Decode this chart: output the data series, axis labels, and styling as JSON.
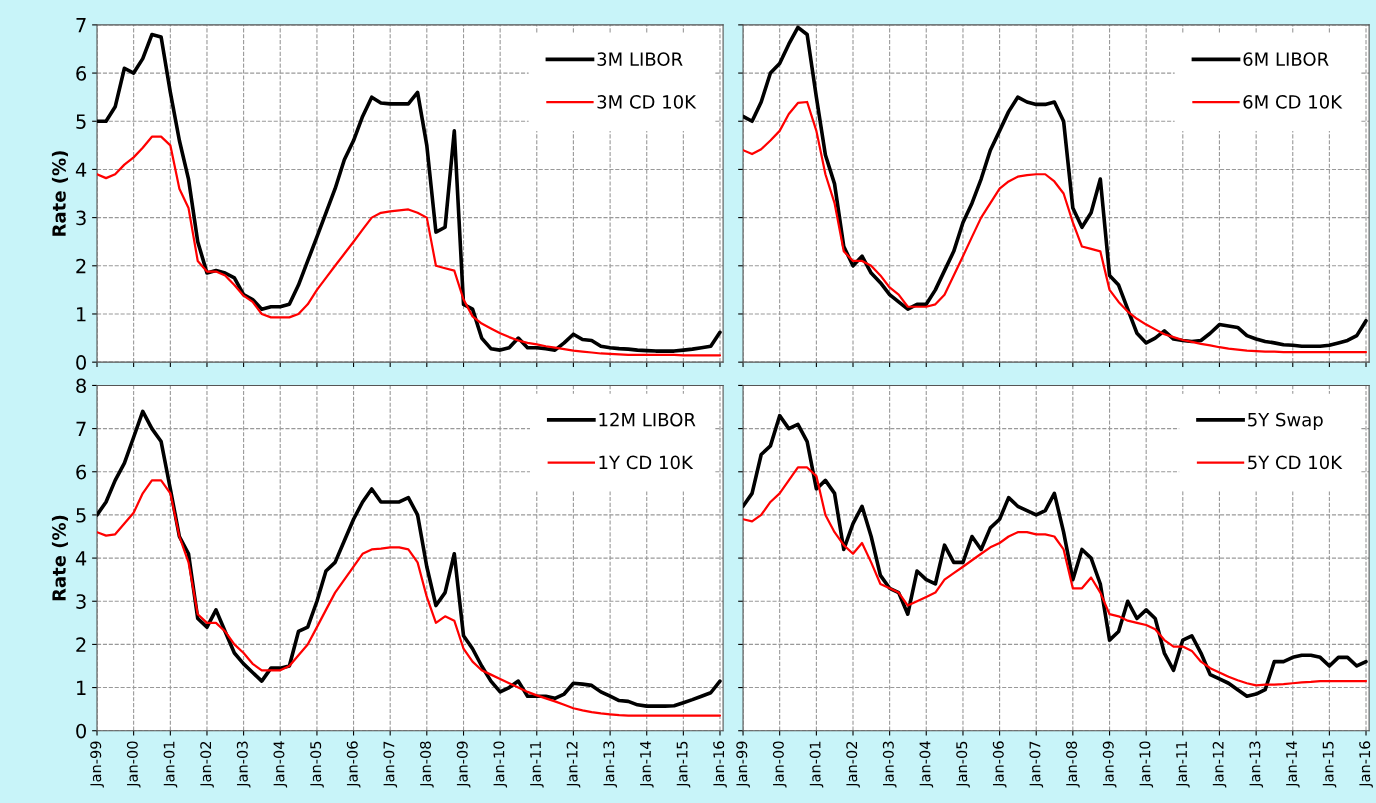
{
  "chart_data": [
    {
      "type": "line",
      "ylabel": "Rate (%)",
      "tick_labels": "y",
      "legend": "top right",
      "grid": true,
      "x": [
        "1999-01",
        "1999-04",
        "1999-07",
        "1999-10",
        "2000-01",
        "2000-04",
        "2000-07",
        "2000-10",
        "2001-01",
        "2001-04",
        "2001-07",
        "2001-10",
        "2002-01",
        "2002-04",
        "2002-07",
        "2002-10",
        "2003-01",
        "2003-04",
        "2003-07",
        "2003-10",
        "2004-01",
        "2004-04",
        "2004-07",
        "2004-10",
        "2005-01",
        "2005-04",
        "2005-07",
        "2005-10",
        "2006-01",
        "2006-04",
        "2006-07",
        "2006-10",
        "2007-01",
        "2007-04",
        "2007-07",
        "2007-10",
        "2008-01",
        "2008-04",
        "2008-07",
        "2008-10",
        "2009-01",
        "2009-04",
        "2009-07",
        "2009-10",
        "2010-01",
        "2010-04",
        "2010-07",
        "2010-10",
        "2011-01",
        "2011-04",
        "2011-07",
        "2011-10",
        "2012-01",
        "2012-04",
        "2012-07",
        "2012-10",
        "2013-01",
        "2013-04",
        "2013-07",
        "2013-10",
        "2014-01",
        "2014-04",
        "2014-07",
        "2014-10",
        "2015-01",
        "2015-04",
        "2015-07",
        "2015-10",
        "2016-01"
      ],
      "xlim": [
        "1999-01",
        "2016-02"
      ],
      "xticks": [
        {
          "value": "1999-01",
          "label": null
        },
        {
          "value": "2000-01",
          "label": null
        },
        {
          "value": "2001-01",
          "label": null
        },
        {
          "value": "2002-01",
          "label": null
        },
        {
          "value": "2003-01",
          "label": null
        },
        {
          "value": "2004-01",
          "label": null
        },
        {
          "value": "2005-01",
          "label": null
        },
        {
          "value": "2006-01",
          "label": null
        },
        {
          "value": "2007-01",
          "label": null
        },
        {
          "value": "2008-01",
          "label": null
        },
        {
          "value": "2009-01",
          "label": null
        },
        {
          "value": "2010-01",
          "label": null
        },
        {
          "value": "2011-01",
          "label": null
        },
        {
          "value": "2012-01",
          "label": null
        },
        {
          "value": "2013-01",
          "label": null
        },
        {
          "value": "2014-01",
          "label": null
        },
        {
          "value": "2015-01",
          "label": null
        },
        {
          "value": "2016-01",
          "label": null
        }
      ],
      "ylim": [
        0,
        7
      ],
      "yticks": [
        0,
        1,
        2,
        3,
        4,
        5,
        6,
        7
      ],
      "series": [
        {
          "name": "3M LIBOR",
          "color": "#000000",
          "values": [
            5.0,
            5.0,
            5.3,
            6.1,
            6.0,
            6.3,
            6.8,
            6.75,
            5.6,
            4.6,
            3.8,
            2.5,
            1.85,
            1.9,
            1.85,
            1.75,
            1.4,
            1.3,
            1.1,
            1.15,
            1.15,
            1.2,
            1.6,
            2.1,
            2.6,
            3.1,
            3.6,
            4.2,
            4.6,
            5.1,
            5.5,
            5.38,
            5.36,
            5.36,
            5.36,
            5.6,
            4.5,
            2.7,
            2.8,
            4.8,
            1.2,
            1.1,
            0.5,
            0.28,
            0.25,
            0.3,
            0.5,
            0.3,
            0.3,
            0.28,
            0.25,
            0.4,
            0.58,
            0.47,
            0.45,
            0.33,
            0.3,
            0.28,
            0.27,
            0.25,
            0.24,
            0.23,
            0.23,
            0.23,
            0.25,
            0.27,
            0.3,
            0.33,
            0.62
          ]
        },
        {
          "name": "3M CD 10K",
          "color": "#ff0000",
          "values": [
            3.9,
            3.82,
            3.9,
            4.1,
            4.25,
            4.45,
            4.68,
            4.68,
            4.5,
            3.6,
            3.2,
            2.1,
            1.88,
            1.88,
            1.8,
            1.6,
            1.38,
            1.25,
            1.0,
            0.93,
            0.93,
            0.93,
            1.0,
            1.2,
            1.5,
            1.75,
            2.0,
            2.25,
            2.5,
            2.75,
            3.0,
            3.1,
            3.13,
            3.15,
            3.17,
            3.1,
            3.0,
            2.0,
            1.95,
            1.9,
            1.3,
            0.95,
            0.8,
            0.7,
            0.6,
            0.52,
            0.45,
            0.4,
            0.37,
            0.33,
            0.3,
            0.27,
            0.24,
            0.22,
            0.2,
            0.18,
            0.17,
            0.16,
            0.15,
            0.15,
            0.15,
            0.15,
            0.15,
            0.15,
            0.14,
            0.14,
            0.14,
            0.14,
            0.14
          ]
        }
      ]
    },
    {
      "type": "line",
      "tick_labels": false,
      "legend": "top right",
      "grid": true,
      "x": [
        "1999-01",
        "1999-04",
        "1999-07",
        "1999-10",
        "2000-01",
        "2000-04",
        "2000-07",
        "2000-10",
        "2001-01",
        "2001-04",
        "2001-07",
        "2001-10",
        "2002-01",
        "2002-04",
        "2002-07",
        "2002-10",
        "2003-01",
        "2003-04",
        "2003-07",
        "2003-10",
        "2004-01",
        "2004-04",
        "2004-07",
        "2004-10",
        "2005-01",
        "2005-04",
        "2005-07",
        "2005-10",
        "2006-01",
        "2006-04",
        "2006-07",
        "2006-10",
        "2007-01",
        "2007-04",
        "2007-07",
        "2007-10",
        "2008-01",
        "2008-04",
        "2008-07",
        "2008-10",
        "2009-01",
        "2009-04",
        "2009-07",
        "2009-10",
        "2010-01",
        "2010-04",
        "2010-07",
        "2010-10",
        "2011-01",
        "2011-04",
        "2011-07",
        "2011-10",
        "2012-01",
        "2012-04",
        "2012-07",
        "2012-10",
        "2013-01",
        "2013-04",
        "2013-07",
        "2013-10",
        "2014-01",
        "2014-04",
        "2014-07",
        "2014-10",
        "2015-01",
        "2015-04",
        "2015-07",
        "2015-10",
        "2016-01"
      ],
      "xlim": [
        "1999-01",
        "2016-02"
      ],
      "xticks": [
        {
          "value": "1999-01",
          "label": null
        },
        {
          "value": "2000-01",
          "label": null
        },
        {
          "value": "2001-01",
          "label": null
        },
        {
          "value": "2002-01",
          "label": null
        },
        {
          "value": "2003-01",
          "label": null
        },
        {
          "value": "2004-01",
          "label": null
        },
        {
          "value": "2005-01",
          "label": null
        },
        {
          "value": "2006-01",
          "label": null
        },
        {
          "value": "2007-01",
          "label": null
        },
        {
          "value": "2008-01",
          "label": null
        },
        {
          "value": "2009-01",
          "label": null
        },
        {
          "value": "2010-01",
          "label": null
        },
        {
          "value": "2011-01",
          "label": null
        },
        {
          "value": "2012-01",
          "label": null
        },
        {
          "value": "2013-01",
          "label": null
        },
        {
          "value": "2014-01",
          "label": null
        },
        {
          "value": "2015-01",
          "label": null
        },
        {
          "value": "2016-01",
          "label": null
        }
      ],
      "ylim": [
        0,
        7
      ],
      "yticks": [
        0,
        1,
        2,
        3,
        4,
        5,
        6,
        7
      ],
      "series": [
        {
          "name": "6M LIBOR",
          "color": "#000000",
          "values": [
            5.1,
            5.0,
            5.4,
            6.0,
            6.2,
            6.6,
            6.95,
            6.8,
            5.5,
            4.3,
            3.7,
            2.4,
            2.0,
            2.2,
            1.85,
            1.65,
            1.4,
            1.25,
            1.1,
            1.2,
            1.2,
            1.5,
            1.9,
            2.3,
            2.9,
            3.3,
            3.8,
            4.4,
            4.8,
            5.2,
            5.5,
            5.4,
            5.35,
            5.35,
            5.4,
            5.0,
            3.2,
            2.8,
            3.1,
            3.8,
            1.8,
            1.6,
            1.1,
            0.6,
            0.4,
            0.5,
            0.65,
            0.48,
            0.45,
            0.43,
            0.45,
            0.6,
            0.78,
            0.75,
            0.72,
            0.55,
            0.48,
            0.43,
            0.4,
            0.36,
            0.35,
            0.33,
            0.33,
            0.33,
            0.35,
            0.4,
            0.45,
            0.55,
            0.86
          ]
        },
        {
          "name": "6M CD 10K",
          "color": "#ff0000",
          "values": [
            4.4,
            4.32,
            4.42,
            4.6,
            4.8,
            5.15,
            5.38,
            5.4,
            4.8,
            3.9,
            3.3,
            2.3,
            2.1,
            2.1,
            2.0,
            1.8,
            1.55,
            1.4,
            1.15,
            1.15,
            1.15,
            1.2,
            1.4,
            1.8,
            2.2,
            2.6,
            3.0,
            3.3,
            3.6,
            3.75,
            3.85,
            3.88,
            3.9,
            3.9,
            3.75,
            3.5,
            2.9,
            2.4,
            2.35,
            2.3,
            1.5,
            1.25,
            1.05,
            0.9,
            0.78,
            0.68,
            0.58,
            0.52,
            0.46,
            0.42,
            0.38,
            0.35,
            0.31,
            0.28,
            0.26,
            0.24,
            0.23,
            0.22,
            0.22,
            0.21,
            0.21,
            0.21,
            0.21,
            0.21,
            0.21,
            0.21,
            0.21,
            0.21,
            0.21
          ]
        }
      ]
    },
    {
      "type": "line",
      "ylabel": "Rate (%)",
      "legend": "top right",
      "grid": true,
      "x": [
        "1999-01",
        "1999-04",
        "1999-07",
        "1999-10",
        "2000-01",
        "2000-04",
        "2000-07",
        "2000-10",
        "2001-01",
        "2001-04",
        "2001-07",
        "2001-10",
        "2002-01",
        "2002-04",
        "2002-07",
        "2002-10",
        "2003-01",
        "2003-04",
        "2003-07",
        "2003-10",
        "2004-01",
        "2004-04",
        "2004-07",
        "2004-10",
        "2005-01",
        "2005-04",
        "2005-07",
        "2005-10",
        "2006-01",
        "2006-04",
        "2006-07",
        "2006-10",
        "2007-01",
        "2007-04",
        "2007-07",
        "2007-10",
        "2008-01",
        "2008-04",
        "2008-07",
        "2008-10",
        "2009-01",
        "2009-04",
        "2009-07",
        "2009-10",
        "2010-01",
        "2010-04",
        "2010-07",
        "2010-10",
        "2011-01",
        "2011-04",
        "2011-07",
        "2011-10",
        "2012-01",
        "2012-04",
        "2012-07",
        "2012-10",
        "2013-01",
        "2013-04",
        "2013-07",
        "2013-10",
        "2014-01",
        "2014-04",
        "2014-07",
        "2014-10",
        "2015-01",
        "2015-04",
        "2015-07",
        "2015-10",
        "2016-01"
      ],
      "xlim": [
        "1999-01",
        "2016-02"
      ],
      "xticks": [
        {
          "value": "1999-01",
          "label": "Jan-99"
        },
        {
          "value": "2000-01",
          "label": "Jan-00"
        },
        {
          "value": "2001-01",
          "label": "Jan-01"
        },
        {
          "value": "2002-01",
          "label": "Jan-02"
        },
        {
          "value": "2003-01",
          "label": "Jan-03"
        },
        {
          "value": "2004-01",
          "label": "Jan-04"
        },
        {
          "value": "2005-01",
          "label": "Jan-05"
        },
        {
          "value": "2006-01",
          "label": "Jan-06"
        },
        {
          "value": "2007-01",
          "label": "Jan-07"
        },
        {
          "value": "2008-01",
          "label": "Jan-08"
        },
        {
          "value": "2009-01",
          "label": "Jan-09"
        },
        {
          "value": "2010-01",
          "label": "Jan-10"
        },
        {
          "value": "2011-01",
          "label": "Jan-11"
        },
        {
          "value": "2012-01",
          "label": "Jan-12"
        },
        {
          "value": "2013-01",
          "label": "Jan-13"
        },
        {
          "value": "2014-01",
          "label": "Jan-14"
        },
        {
          "value": "2015-01",
          "label": "Jan-15"
        },
        {
          "value": "2016-01",
          "label": "Jan-16"
        }
      ],
      "ylim": [
        0,
        8
      ],
      "yticks": [
        0,
        1,
        2,
        3,
        4,
        5,
        6,
        7,
        8
      ],
      "series": [
        {
          "name": "12M LIBOR",
          "color": "#000000",
          "values": [
            5.0,
            5.3,
            5.8,
            6.2,
            6.8,
            7.4,
            7.0,
            6.7,
            5.6,
            4.5,
            4.1,
            2.6,
            2.4,
            2.8,
            2.3,
            1.8,
            1.55,
            1.35,
            1.15,
            1.45,
            1.45,
            1.5,
            2.3,
            2.4,
            3.0,
            3.7,
            3.9,
            4.4,
            4.9,
            5.3,
            5.6,
            5.3,
            5.3,
            5.3,
            5.4,
            5.0,
            3.8,
            2.9,
            3.2,
            4.1,
            2.2,
            1.9,
            1.5,
            1.15,
            0.9,
            1.0,
            1.15,
            0.8,
            0.8,
            0.8,
            0.75,
            0.85,
            1.1,
            1.08,
            1.05,
            0.9,
            0.8,
            0.7,
            0.68,
            0.6,
            0.57,
            0.57,
            0.57,
            0.58,
            0.65,
            0.72,
            0.8,
            0.88,
            1.15
          ]
        },
        {
          "name": "1Y CD 10K",
          "color": "#ff0000",
          "values": [
            4.6,
            4.52,
            4.55,
            4.8,
            5.05,
            5.5,
            5.8,
            5.8,
            5.5,
            4.5,
            3.9,
            2.7,
            2.5,
            2.5,
            2.3,
            2.0,
            1.8,
            1.55,
            1.4,
            1.4,
            1.4,
            1.5,
            1.75,
            2.0,
            2.4,
            2.8,
            3.2,
            3.5,
            3.8,
            4.1,
            4.2,
            4.22,
            4.25,
            4.25,
            4.2,
            3.9,
            3.1,
            2.5,
            2.65,
            2.55,
            1.9,
            1.6,
            1.4,
            1.3,
            1.2,
            1.1,
            1.0,
            0.9,
            0.82,
            0.75,
            0.68,
            0.6,
            0.52,
            0.47,
            0.43,
            0.4,
            0.38,
            0.36,
            0.35,
            0.35,
            0.35,
            0.35,
            0.35,
            0.35,
            0.35,
            0.35,
            0.35,
            0.35,
            0.35
          ]
        }
      ]
    },
    {
      "type": "line",
      "tick_labels": "x",
      "legend": "top right",
      "grid": true,
      "x": [
        "1999-01",
        "1999-04",
        "1999-07",
        "1999-10",
        "2000-01",
        "2000-04",
        "2000-07",
        "2000-10",
        "2001-01",
        "2001-04",
        "2001-07",
        "2001-10",
        "2002-01",
        "2002-04",
        "2002-07",
        "2002-10",
        "2003-01",
        "2003-04",
        "2003-07",
        "2003-10",
        "2004-01",
        "2004-04",
        "2004-07",
        "2004-10",
        "2005-01",
        "2005-04",
        "2005-07",
        "2005-10",
        "2006-01",
        "2006-04",
        "2006-07",
        "2006-10",
        "2007-01",
        "2007-04",
        "2007-07",
        "2007-10",
        "2008-01",
        "2008-04",
        "2008-07",
        "2008-10",
        "2009-01",
        "2009-04",
        "2009-07",
        "2009-10",
        "2010-01",
        "2010-04",
        "2010-07",
        "2010-10",
        "2011-01",
        "2011-04",
        "2011-07",
        "2011-10",
        "2012-01",
        "2012-04",
        "2012-07",
        "2012-10",
        "2013-01",
        "2013-04",
        "2013-07",
        "2013-10",
        "2014-01",
        "2014-04",
        "2014-07",
        "2014-10",
        "2015-01",
        "2015-04",
        "2015-07",
        "2015-10",
        "2016-01"
      ],
      "xlim": [
        "1999-01",
        "2016-02"
      ],
      "xticks": [
        {
          "value": "1999-01",
          "label": "Jan-99"
        },
        {
          "value": "2000-01",
          "label": "Jan-00"
        },
        {
          "value": "2001-01",
          "label": "Jan-01"
        },
        {
          "value": "2002-01",
          "label": "Jan-02"
        },
        {
          "value": "2003-01",
          "label": "Jan-03"
        },
        {
          "value": "2004-01",
          "label": "Jan-04"
        },
        {
          "value": "2005-01",
          "label": "Jan-05"
        },
        {
          "value": "2006-01",
          "label": "Jan-06"
        },
        {
          "value": "2007-01",
          "label": "Jan-07"
        },
        {
          "value": "2008-01",
          "label": "Jan-08"
        },
        {
          "value": "2009-01",
          "label": "Jan-09"
        },
        {
          "value": "2010-01",
          "label": "Jan-10"
        },
        {
          "value": "2011-01",
          "label": "Jan-11"
        },
        {
          "value": "2012-01",
          "label": "Jan-12"
        },
        {
          "value": "2013-01",
          "label": "Jan-13"
        },
        {
          "value": "2014-01",
          "label": "Jan-14"
        },
        {
          "value": "2015-01",
          "label": "Jan-15"
        },
        {
          "value": "2016-01",
          "label": "Jan-16"
        }
      ],
      "ylim": [
        0,
        8
      ],
      "yticks": [
        0,
        1,
        2,
        3,
        4,
        5,
        6,
        7,
        8
      ],
      "series": [
        {
          "name": "5Y Swap",
          "color": "#000000",
          "values": [
            5.2,
            5.5,
            6.4,
            6.6,
            7.3,
            7.0,
            7.1,
            6.7,
            5.6,
            5.8,
            5.5,
            4.2,
            4.8,
            5.2,
            4.5,
            3.6,
            3.3,
            3.2,
            2.7,
            3.7,
            3.5,
            3.4,
            4.3,
            3.9,
            3.9,
            4.5,
            4.2,
            4.7,
            4.9,
            5.4,
            5.2,
            5.1,
            5.0,
            5.1,
            5.5,
            4.6,
            3.5,
            4.2,
            4.0,
            3.4,
            2.1,
            2.3,
            3.0,
            2.6,
            2.8,
            2.6,
            1.8,
            1.4,
            2.1,
            2.2,
            1.8,
            1.3,
            1.2,
            1.1,
            0.95,
            0.8,
            0.85,
            0.95,
            1.6,
            1.6,
            1.7,
            1.75,
            1.75,
            1.7,
            1.5,
            1.7,
            1.7,
            1.5,
            1.6
          ]
        },
        {
          "name": "5Y CD 10K",
          "color": "#ff0000",
          "values": [
            4.9,
            4.85,
            5.0,
            5.3,
            5.5,
            5.8,
            6.1,
            6.1,
            5.9,
            5.0,
            4.6,
            4.3,
            4.1,
            4.35,
            3.9,
            3.4,
            3.3,
            3.2,
            2.9,
            3.0,
            3.1,
            3.2,
            3.5,
            3.65,
            3.8,
            3.95,
            4.1,
            4.25,
            4.35,
            4.5,
            4.6,
            4.6,
            4.55,
            4.55,
            4.5,
            4.2,
            3.3,
            3.3,
            3.55,
            3.2,
            2.7,
            2.65,
            2.55,
            2.5,
            2.45,
            2.35,
            2.1,
            1.95,
            1.95,
            1.85,
            1.6,
            1.45,
            1.35,
            1.25,
            1.17,
            1.1,
            1.05,
            1.07,
            1.07,
            1.08,
            1.1,
            1.12,
            1.13,
            1.15,
            1.15,
            1.15,
            1.15,
            1.15,
            1.15
          ]
        }
      ]
    }
  ]
}
